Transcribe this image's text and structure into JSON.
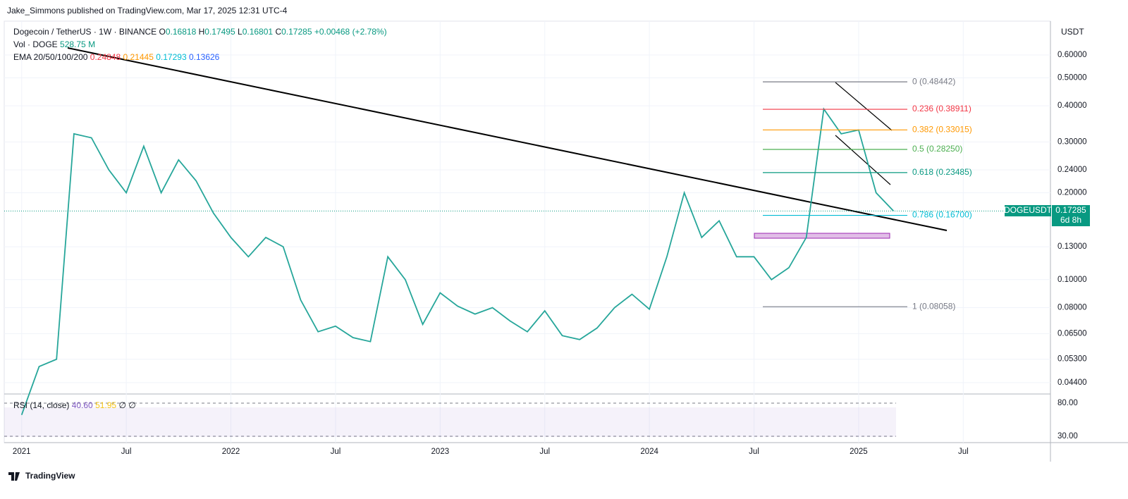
{
  "header": {
    "title": "Jake_Simmons published on TradingView.com, Mar 17, 2025 12:31 UTC-4"
  },
  "legend": {
    "symbol": "Dogecoin / TetherUS · 1W · BINANCE",
    "o_label": "O",
    "open": "0.16818",
    "h_label": "H",
    "high": "0.17495",
    "l_label": "L",
    "low": "0.16801",
    "c_label": "C",
    "close": "0.17285",
    "change": "+0.00468 (+2.78%)",
    "vol_label": "Vol · DOGE",
    "vol": "528.75 M",
    "ema_label": "EMA 20/50/100/200",
    "ema": [
      "0.24848",
      "0.21445",
      "0.17293",
      "0.13626"
    ]
  },
  "chart_data": {
    "type": "line",
    "currency": "USDT",
    "log_scale": true,
    "grid": true,
    "color": "#26a69a",
    "x": [
      "2021-01",
      "2021-02",
      "2021-03",
      "2021-04",
      "2021-05",
      "2021-06",
      "2021-07",
      "2021-08",
      "2021-09",
      "2021-10",
      "2021-11",
      "2021-12",
      "2022-01",
      "2022-02",
      "2022-03",
      "2022-04",
      "2022-05",
      "2022-06",
      "2022-07",
      "2022-08",
      "2022-09",
      "2022-10",
      "2022-11",
      "2022-12",
      "2023-01",
      "2023-02",
      "2023-03",
      "2023-04",
      "2023-05",
      "2023-06",
      "2023-07",
      "2023-08",
      "2023-09",
      "2023-10",
      "2023-11",
      "2023-12",
      "2024-01",
      "2024-02",
      "2024-03",
      "2024-04",
      "2024-05",
      "2024-06",
      "2024-07",
      "2024-08",
      "2024-09",
      "2024-10",
      "2024-11",
      "2024-12",
      "2025-01",
      "2025-02",
      "2025-03"
    ],
    "values": [
      0.034,
      0.05,
      0.053,
      0.32,
      0.31,
      0.24,
      0.2,
      0.29,
      0.2,
      0.26,
      0.22,
      0.17,
      0.14,
      0.12,
      0.14,
      0.13,
      0.085,
      0.066,
      0.069,
      0.063,
      0.061,
      0.12,
      0.1,
      0.07,
      0.09,
      0.081,
      0.076,
      0.08,
      0.072,
      0.066,
      0.078,
      0.064,
      0.062,
      0.068,
      0.08,
      0.089,
      0.079,
      0.12,
      0.2,
      0.14,
      0.16,
      0.12,
      0.12,
      0.1,
      0.11,
      0.14,
      0.39,
      0.32,
      0.33,
      0.2,
      0.17285
    ],
    "xlim": [
      "2020-12",
      "2025-12"
    ],
    "xticks": [
      {
        "value": "2021-01",
        "label": "2021"
      },
      {
        "value": "2021-07",
        "label": "Jul"
      },
      {
        "value": "2022-01",
        "label": "2022"
      },
      {
        "value": "2022-07",
        "label": "Jul"
      },
      {
        "value": "2023-01",
        "label": "2023"
      },
      {
        "value": "2023-07",
        "label": "Jul"
      },
      {
        "value": "2024-01",
        "label": "2024"
      },
      {
        "value": "2024-07",
        "label": "Jul"
      },
      {
        "value": "2025-01",
        "label": "2025"
      },
      {
        "value": "2025-07",
        "label": "Jul"
      }
    ],
    "ylim": [
      0.0404,
      0.786
    ],
    "yticks": [
      {
        "value": 0.6,
        "label": "0.60000"
      },
      {
        "value": 0.5,
        "label": "0.50000"
      },
      {
        "value": 0.4,
        "label": "0.40000"
      },
      {
        "value": 0.3,
        "label": "0.30000"
      },
      {
        "value": 0.24,
        "label": "0.24000"
      },
      {
        "value": 0.2,
        "label": "0.20000"
      },
      {
        "value": 0.13,
        "label": "0.13000"
      },
      {
        "value": 0.1,
        "label": "0.10000"
      },
      {
        "value": 0.08,
        "label": "0.08000"
      },
      {
        "value": 0.065,
        "label": "0.06500"
      },
      {
        "value": 0.053,
        "label": "0.05300"
      },
      {
        "value": 0.044,
        "label": "0.04400"
      }
    ]
  },
  "price_tag": {
    "symbol": "DOGEUSDT",
    "price": "0.17285",
    "countdown": "6d 8h",
    "value": 0.17285
  },
  "fib": [
    {
      "label": "0 (0.48442)",
      "value": 0.48442,
      "color": "#787b86"
    },
    {
      "label": "0.236 (0.38911)",
      "value": 0.38911,
      "color": "#f23645"
    },
    {
      "label": "0.382 (0.33015)",
      "value": 0.33015,
      "color": "#ff9800"
    },
    {
      "label": "0.5 (0.28250)",
      "value": 0.2825,
      "color": "#4caf50"
    },
    {
      "label": "0.618 (0.23485)",
      "value": 0.23485,
      "color": "#089981"
    },
    {
      "label": "0.786 (0.16700)",
      "value": 0.167,
      "color": "#00bcd4"
    },
    {
      "label": "1 (0.08058)",
      "value": 0.08058,
      "color": "#787b86"
    }
  ],
  "rsi": {
    "label": "RSI (14, close)",
    "rsi": "40.60",
    "ma": "51.95",
    "n1": "∅",
    "n2": "∅",
    "ylim": [
      23.6,
      90.6
    ],
    "yticks": [
      {
        "value": 80,
        "label": "80.00"
      },
      {
        "value": 30,
        "label": "30.00"
      }
    ]
  },
  "footer": {
    "brand": "TradingView"
  }
}
